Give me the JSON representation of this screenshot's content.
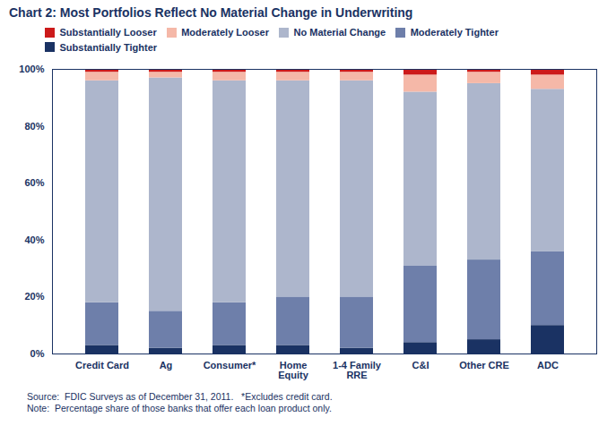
{
  "chart_data": {
    "type": "bar",
    "stacked": true,
    "title": "Chart 2:  Most Portfolios Reflect No Material Change in Underwriting",
    "caption": "Source:  FDIC Surveys as of December 31, 2011.   *Excludes credit card.\nNote:  Percentage share of those banks that offer each loan product only.",
    "categories": [
      "Credit Card",
      "Ag",
      "Consumer*",
      "Home\nEquity",
      "1-4 Family\nRRE",
      "C&I",
      "Other CRE",
      "ADC"
    ],
    "series": [
      {
        "name": "Substantially Tighter",
        "color": "#1a3263",
        "values": [
          3,
          2,
          3,
          3,
          2,
          4,
          5,
          10
        ]
      },
      {
        "name": "Moderately Tighter",
        "color": "#6e7faa",
        "values": [
          15,
          13,
          15,
          17,
          18,
          27,
          28,
          26
        ]
      },
      {
        "name": "No Material Change",
        "color": "#adb6cc",
        "values": [
          78,
          82,
          78,
          76,
          76,
          61,
          62,
          57
        ]
      },
      {
        "name": "Moderately Looser",
        "color": "#f5b8a8",
        "values": [
          3,
          2,
          3,
          3,
          3,
          6,
          4,
          5
        ]
      },
      {
        "name": "Substantially Looser",
        "color": "#cc1a1a",
        "values": [
          1,
          1,
          1,
          1,
          1,
          2,
          1,
          2
        ]
      }
    ],
    "ylim": [
      0,
      100
    ],
    "yticks": [
      {
        "value": 0,
        "label": "0%"
      },
      {
        "value": 20,
        "label": "20%"
      },
      {
        "value": 40,
        "label": "40%"
      },
      {
        "value": 60,
        "label": "60%"
      },
      {
        "value": 80,
        "label": "80%"
      },
      {
        "value": 100,
        "label": "100%"
      }
    ],
    "grid": false,
    "legend": "top",
    "color": "#1a3263"
  }
}
